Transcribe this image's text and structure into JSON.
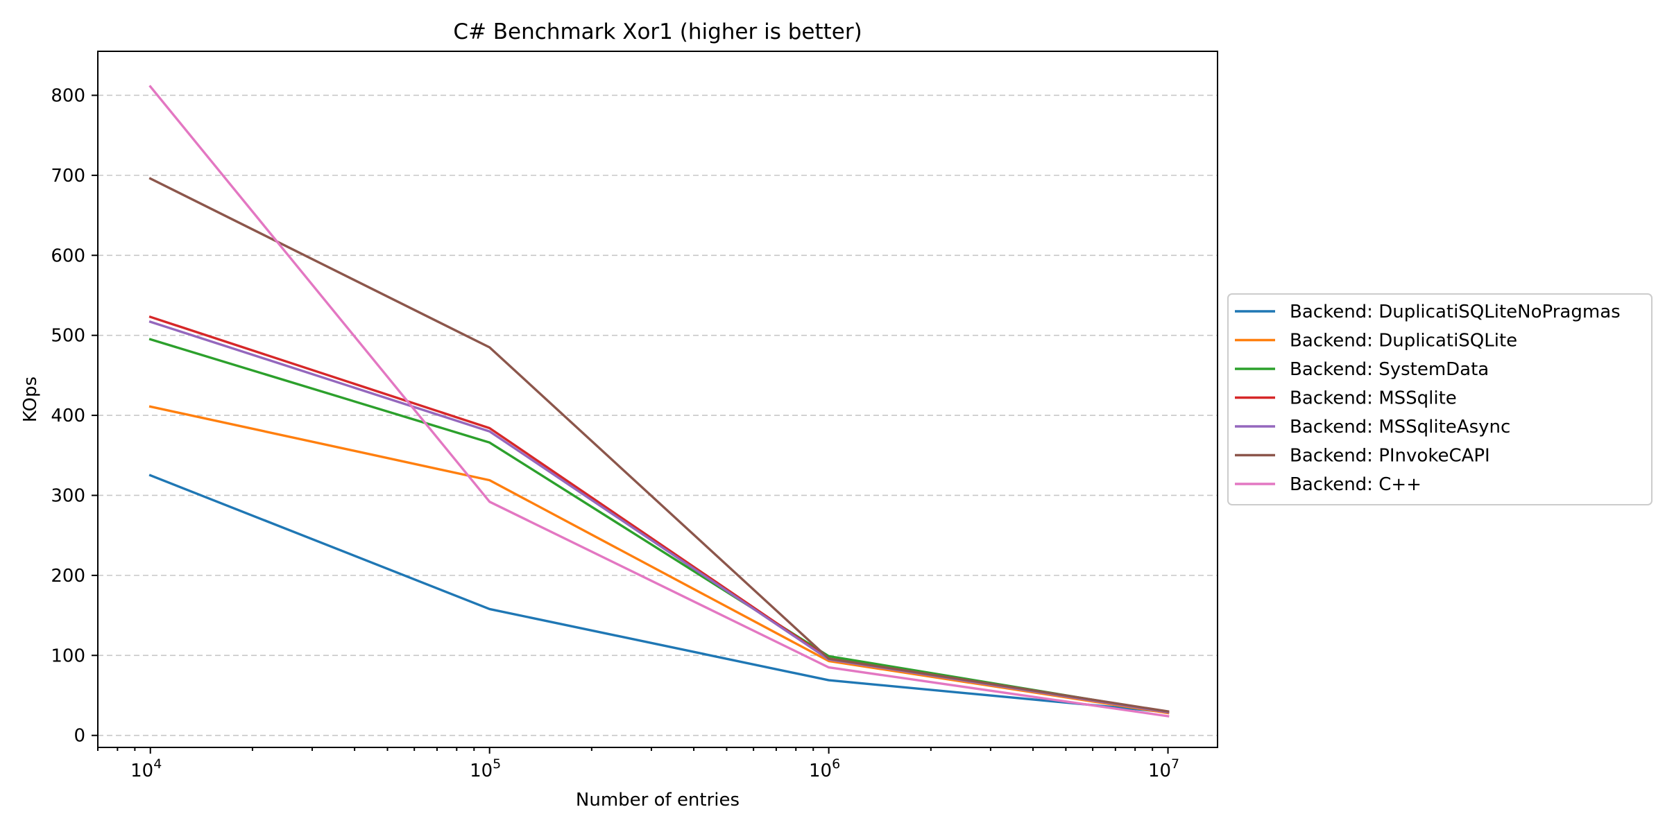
{
  "chart_data": {
    "type": "line",
    "title": "C# Benchmark Xor1 (higher is better)",
    "xlabel": "Number of entries",
    "ylabel": "KOps",
    "xscale": "log",
    "x": [
      10000,
      100000,
      1000000,
      10000000
    ],
    "x_tick_labels": [
      {
        "base": "10",
        "exp": "4"
      },
      {
        "base": "10",
        "exp": "5"
      },
      {
        "base": "10",
        "exp": "6"
      },
      {
        "base": "10",
        "exp": "7"
      }
    ],
    "xlim": [
      7000,
      14000000
    ],
    "ylim": [
      -15,
      855
    ],
    "yticks": [
      0,
      100,
      200,
      300,
      400,
      500,
      600,
      700,
      800
    ],
    "grid": "y, dashed",
    "legend_position": "right, outside",
    "series": [
      {
        "name": "Backend: DuplicatiSQLiteNoPragmas",
        "color": "#1f77b4",
        "values": [
          325,
          158,
          69,
          29
        ]
      },
      {
        "name": "Backend: DuplicatiSQLite",
        "color": "#ff7f0e",
        "values": [
          411,
          319,
          93,
          28
        ]
      },
      {
        "name": "Backend: SystemData",
        "color": "#2ca02c",
        "values": [
          495,
          366,
          99,
          29
        ]
      },
      {
        "name": "Backend: MSSqlite",
        "color": "#d62728",
        "values": [
          523,
          384,
          96,
          29
        ]
      },
      {
        "name": "Backend: MSSqliteAsync",
        "color": "#9467bd",
        "values": [
          517,
          380,
          95,
          29
        ]
      },
      {
        "name": "Backend: PInvokeCAPI",
        "color": "#8c564b",
        "values": [
          696,
          485,
          96,
          30
        ]
      },
      {
        "name": "Backend: C++",
        "color": "#e377c2",
        "values": [
          811,
          292,
          85,
          24
        ]
      }
    ]
  }
}
